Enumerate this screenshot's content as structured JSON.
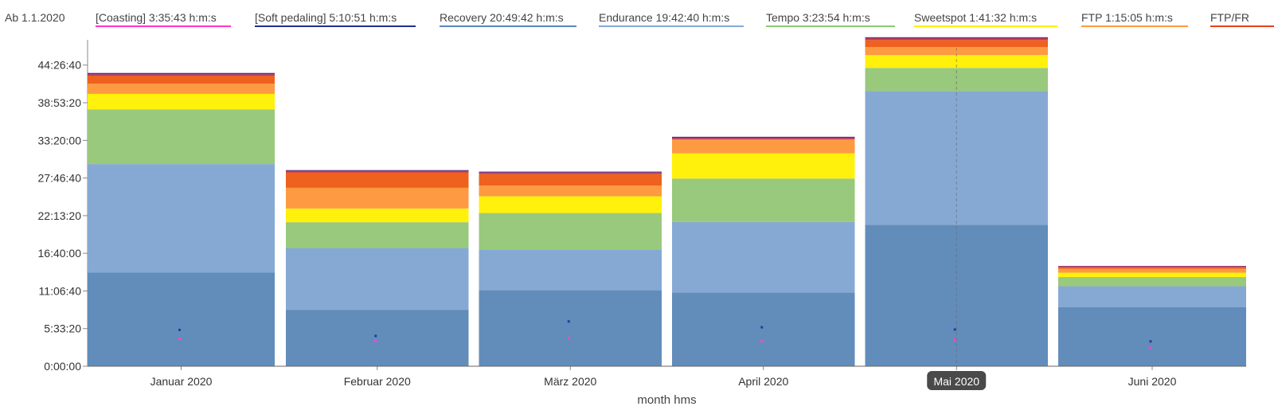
{
  "legend": {
    "start_label": "Ab 1.1.2020",
    "items": [
      {
        "label": "[Coasting]  3:35:43 h:m:s",
        "color": "#ff33cc"
      },
      {
        "label": "[Soft pedaling]  5:10:51 h:m:s",
        "color": "#1f2f8f"
      },
      {
        "label": "Recovery  20:49:42 h:m:s",
        "color": "#5b87b8"
      },
      {
        "label": "Endurance  19:42:40 h:m:s",
        "color": "#86a9d4"
      },
      {
        "label": "Tempo  3:23:54 h:m:s",
        "color": "#8cc96f"
      },
      {
        "label": "Sweetspot  1:41:32 h:m:s",
        "color": "#fff000"
      },
      {
        "label": "FTP  1:15:05 h:m:s",
        "color": "#ff9a3c"
      },
      {
        "label": "FTP/FR",
        "color": "#e8401c"
      }
    ]
  },
  "highlight": {
    "category": "Mai 2020"
  },
  "chart_data": {
    "type": "bar",
    "stacked": true,
    "xlabel": "month hms",
    "ylabel": "",
    "ylim_seconds": [
      0,
      169200
    ],
    "y_ticks": [
      "0:00:00",
      "5:33:20",
      "11:06:40",
      "16:40:00",
      "22:13:20",
      "27:46:40",
      "33:20:00",
      "38:53:20",
      "44:26:40"
    ],
    "y_tick_values_seconds": [
      0,
      20000,
      40000,
      60000,
      80000,
      100000,
      120000,
      140000,
      160000
    ],
    "categories": [
      "Januar 2020",
      "Februar 2020",
      "März 2020",
      "April 2020",
      "Mai 2020",
      "Juni 2020"
    ],
    "series": [
      {
        "name": "Recovery",
        "color": "#628dba",
        "values_seconds": [
          49700,
          30000,
          40500,
          39100,
          75200,
          31300
        ]
      },
      {
        "name": "Endurance",
        "color": "#86a9d4",
        "values_seconds": [
          57700,
          32800,
          21600,
          37500,
          71000,
          11200
        ]
      },
      {
        "name": "Tempo",
        "color": "#99c97c",
        "values_seconds": [
          29000,
          13700,
          19300,
          23100,
          12300,
          4900
        ]
      },
      {
        "name": "Sweetspot",
        "color": "#fff10c",
        "values_seconds": [
          8300,
          7300,
          8900,
          13400,
          6800,
          2300
        ]
      },
      {
        "name": "FTP",
        "color": "#fe9a41",
        "values_seconds": [
          5400,
          11000,
          5700,
          7400,
          4300,
          2100
        ]
      },
      {
        "name": "FTP/FR",
        "color": "#ee611e",
        "values_seconds": [
          4300,
          8200,
          6200,
          0,
          3700,
          800
        ]
      },
      {
        "name": "",
        "color": "#c03a5a",
        "values_seconds": [
          700,
          700,
          700,
          800,
          1000,
          500
        ]
      },
      {
        "name": "",
        "color": "#5a2a7a",
        "values_seconds": [
          700,
          500,
          500,
          600,
          500,
          200
        ]
      }
    ],
    "markers": [
      {
        "name": "[Soft pedaling]",
        "color": "#1f3fa0",
        "values_seconds": [
          19300,
          16100,
          23800,
          20700,
          19500,
          13200
        ]
      },
      {
        "name": "[Coasting]",
        "color": "#ff44cc",
        "values_seconds": [
          14500,
          13500,
          14900,
          13400,
          14200,
          9800
        ]
      }
    ]
  }
}
